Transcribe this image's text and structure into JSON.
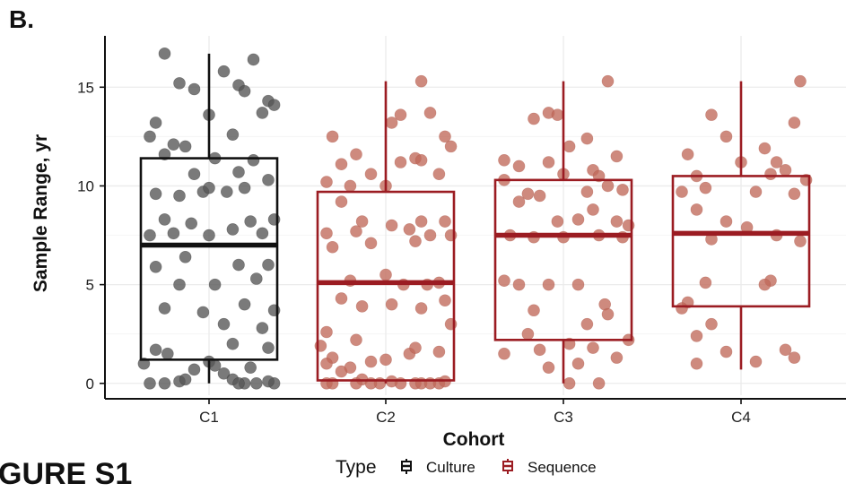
{
  "panel_label": "B.",
  "figure_caption": "GURE S1",
  "colors": {
    "culture": "#111111",
    "sequence": "#9b1c22",
    "sequence_point": "#c0695a",
    "culture_point": "#555555",
    "grid": "#ebebeb"
  },
  "chart_data": {
    "type": "box",
    "xlabel": "Cohort",
    "ylabel": "Sample Range, yr",
    "categories": [
      "C1",
      "C2",
      "C3",
      "C4"
    ],
    "ylim": [
      -0.6,
      17.6
    ],
    "yticks": [
      0,
      5,
      10,
      15
    ],
    "grid": true,
    "legend": {
      "title": "Type",
      "position": "bottom",
      "entries": [
        "Culture",
        "Sequence"
      ]
    },
    "boxes": [
      {
        "category": "C1",
        "type": "Culture",
        "q1": 1.2,
        "median": 7.0,
        "q3": 11.4,
        "whisker_low": 0.0,
        "whisker_high": 16.7
      },
      {
        "category": "C2",
        "type": "Sequence",
        "q1": 0.15,
        "median": 5.1,
        "q3": 9.7,
        "whisker_low": 0.0,
        "whisker_high": 15.3
      },
      {
        "category": "C3",
        "type": "Sequence",
        "q1": 2.2,
        "median": 7.5,
        "q3": 10.3,
        "whisker_low": 0.0,
        "whisker_high": 15.3
      },
      {
        "category": "C4",
        "type": "Sequence",
        "q1": 3.9,
        "median": 7.6,
        "q3": 10.5,
        "whisker_low": 0.7,
        "whisker_high": 15.3
      }
    ],
    "points": [
      {
        "category": "C1",
        "type": "Culture",
        "x": [
          -0.15,
          0.15,
          0.05,
          0.1,
          -0.1,
          0.2,
          -0.05,
          0.12,
          -0.18,
          0.0,
          0.22,
          -0.12,
          0.08,
          -0.2,
          -0.08,
          0.18,
          0.02,
          0.15,
          -0.15,
          -0.05,
          0.1,
          0.2,
          -0.02,
          0.12,
          -0.18,
          -0.1,
          0.06,
          0.0,
          0.22,
          -0.15,
          -0.06,
          0.14,
          0.08,
          -0.12,
          0.18,
          0.0,
          -0.2,
          0.2,
          0.1,
          -0.08,
          -0.18,
          0.16,
          0.02,
          -0.1,
          0.12,
          0.22,
          -0.02,
          -0.15,
          0.05,
          0.18,
          0.08,
          0.2,
          -0.14,
          -0.18,
          -0.22,
          0.14,
          0.0,
          -0.05,
          0.02,
          0.05,
          0.08,
          -0.1,
          0.12,
          -0.2,
          0.22,
          0.1,
          -0.15,
          0.2,
          -0.08,
          0.16
        ],
        "y": [
          16.7,
          16.4,
          15.8,
          15.1,
          15.2,
          14.3,
          14.9,
          14.8,
          13.2,
          13.6,
          14.1,
          12.1,
          12.6,
          12.5,
          12.0,
          13.7,
          11.4,
          11.3,
          11.6,
          10.6,
          10.7,
          10.3,
          9.7,
          9.9,
          9.6,
          9.5,
          9.7,
          9.9,
          8.3,
          8.3,
          8.1,
          8.2,
          7.8,
          7.6,
          7.6,
          7.5,
          7.5,
          6.0,
          6.0,
          6.4,
          5.9,
          5.3,
          5.0,
          5.0,
          4.0,
          3.7,
          3.6,
          3.8,
          3.0,
          2.8,
          2.0,
          1.8,
          1.5,
          1.7,
          1.0,
          0.8,
          1.1,
          0.7,
          0.9,
          0.5,
          0.2,
          0.1,
          0.0,
          0.0,
          0.0,
          0.0,
          0.0,
          0.1,
          0.2,
          0.0
        ]
      },
      {
        "category": "C2",
        "type": "Sequence",
        "x": [
          0.12,
          0.15,
          0.05,
          0.2,
          -0.18,
          0.22,
          -0.1,
          0.1,
          0.02,
          -0.15,
          0.05,
          0.12,
          -0.05,
          -0.2,
          0.18,
          0.0,
          -0.12,
          -0.15,
          0.12,
          0.2,
          -0.08,
          0.02,
          0.08,
          -0.2,
          0.22,
          -0.1,
          0.15,
          -0.05,
          0.1,
          -0.18,
          0.0,
          0.18,
          -0.12,
          0.06,
          0.14,
          -0.15,
          0.2,
          0.12,
          -0.08,
          0.02,
          -0.2,
          -0.22,
          0.22,
          0.08,
          0.18,
          -0.1,
          -0.18,
          0.1,
          0.0,
          -0.05,
          -0.2,
          -0.15,
          -0.12,
          -0.08,
          -0.2,
          0.05,
          0.1,
          -0.02,
          0.12,
          0.15,
          0.18,
          -0.1,
          -0.18,
          0.2,
          -0.05,
          0.02
        ],
        "y": [
          15.3,
          13.7,
          13.6,
          12.5,
          12.5,
          12.0,
          11.6,
          11.4,
          13.2,
          11.1,
          11.2,
          11.3,
          10.6,
          10.2,
          10.6,
          10.0,
          10.0,
          9.2,
          8.2,
          8.2,
          8.2,
          8.0,
          7.8,
          7.6,
          7.5,
          7.7,
          7.5,
          7.1,
          7.2,
          6.9,
          5.5,
          5.1,
          5.2,
          5.0,
          5.0,
          4.3,
          4.2,
          3.8,
          3.9,
          4.0,
          2.6,
          1.9,
          3.0,
          1.5,
          1.6,
          2.2,
          1.3,
          1.8,
          1.2,
          1.1,
          1.0,
          0.6,
          0.8,
          0.2,
          0.0,
          0.0,
          0.0,
          0.0,
          0.0,
          0.0,
          0.0,
          0.0,
          0.0,
          0.1,
          0.0,
          0.1
        ]
      },
      {
        "category": "C3",
        "type": "Sequence",
        "x": [
          0.15,
          -0.05,
          -0.02,
          -0.1,
          0.08,
          0.02,
          0.18,
          -0.15,
          -0.2,
          -0.05,
          0.1,
          0.0,
          0.12,
          -0.2,
          0.15,
          0.08,
          0.2,
          -0.12,
          -0.08,
          -0.15,
          0.1,
          0.18,
          -0.02,
          0.05,
          0.22,
          -0.18,
          -0.1,
          0.0,
          0.12,
          0.2,
          0.05,
          -0.05,
          0.14,
          -0.2,
          -0.15,
          -0.1,
          0.08,
          0.15,
          0.22,
          -0.12,
          0.02,
          0.1,
          -0.08,
          -0.2,
          0.18,
          0.05,
          -0.05,
          0.12,
          0.02
        ],
        "y": [
          15.3,
          13.7,
          13.6,
          13.4,
          12.4,
          12.0,
          11.5,
          11.0,
          11.3,
          11.2,
          10.8,
          10.6,
          10.5,
          10.3,
          10.0,
          9.7,
          9.8,
          9.6,
          9.5,
          9.2,
          8.8,
          8.2,
          8.2,
          8.3,
          8.0,
          7.5,
          7.4,
          7.4,
          7.5,
          7.4,
          5.0,
          5.0,
          4.0,
          5.2,
          5.0,
          3.7,
          3.0,
          3.5,
          2.2,
          2.5,
          2.0,
          1.8,
          1.7,
          1.5,
          1.3,
          1.0,
          0.8,
          0.0,
          0.0
        ]
      },
      {
        "category": "C4",
        "type": "Sequence",
        "x": [
          0.2,
          -0.1,
          0.18,
          -0.05,
          0.08,
          0.12,
          -0.18,
          0.0,
          -0.15,
          0.15,
          0.1,
          0.22,
          -0.12,
          -0.2,
          0.05,
          0.18,
          -0.05,
          0.02,
          -0.1,
          0.12,
          0.2,
          -0.15,
          0.1,
          -0.12,
          0.08,
          -0.18,
          -0.2,
          -0.15,
          -0.1,
          0.15,
          -0.05,
          0.18,
          0.05,
          -0.15
        ],
        "y": [
          15.3,
          13.6,
          13.2,
          12.5,
          11.9,
          11.2,
          11.6,
          11.2,
          10.5,
          10.8,
          10.6,
          10.3,
          9.9,
          9.7,
          9.7,
          9.6,
          8.2,
          7.9,
          7.3,
          7.5,
          7.2,
          8.8,
          5.2,
          5.1,
          5.0,
          4.1,
          3.8,
          2.4,
          3.0,
          1.7,
          1.6,
          1.3,
          1.1,
          1.0
        ]
      }
    ]
  }
}
